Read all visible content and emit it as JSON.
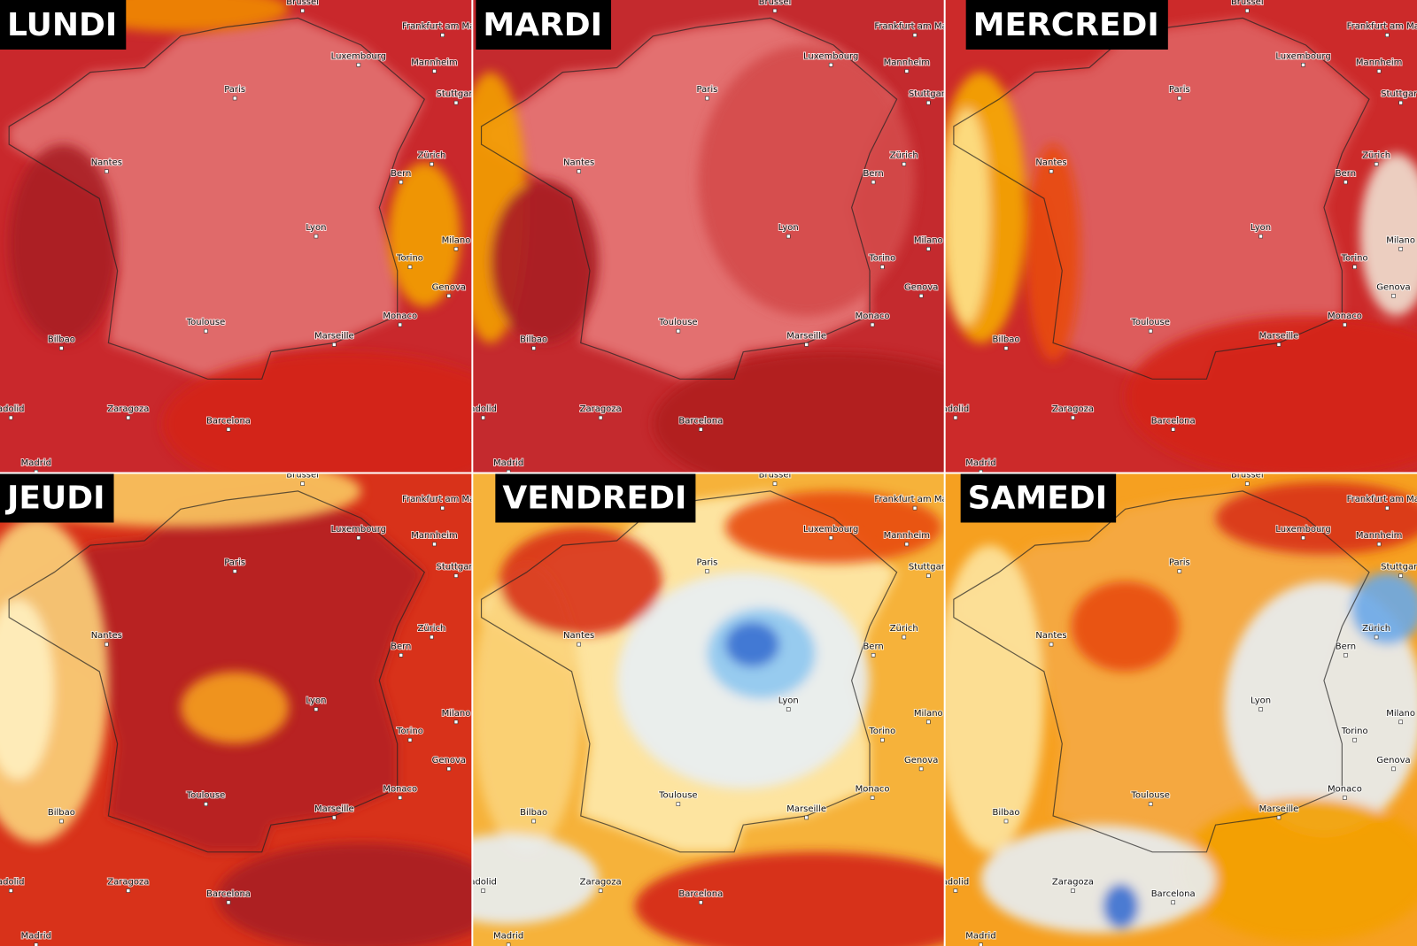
{
  "panels": [
    {
      "day": "LUNDI"
    },
    {
      "day": "MARDI"
    },
    {
      "day": "MERCREDI"
    },
    {
      "day": "JEUDI"
    },
    {
      "day": "VENDREDI"
    },
    {
      "day": "SAMEDI"
    }
  ],
  "cities": [
    "Brussel",
    "Luxembourg",
    "Frankfurt am Main",
    "Mannheim",
    "Stuttgart",
    "Paris",
    "Nantes",
    "Zürich",
    "Bern",
    "Lyon",
    "Milano",
    "Torino",
    "Genova",
    "Monaco",
    "Toulouse",
    "Marseille",
    "Bilbao",
    "Zaragoza",
    "Barcelona",
    "Madrid",
    "adolid"
  ]
}
